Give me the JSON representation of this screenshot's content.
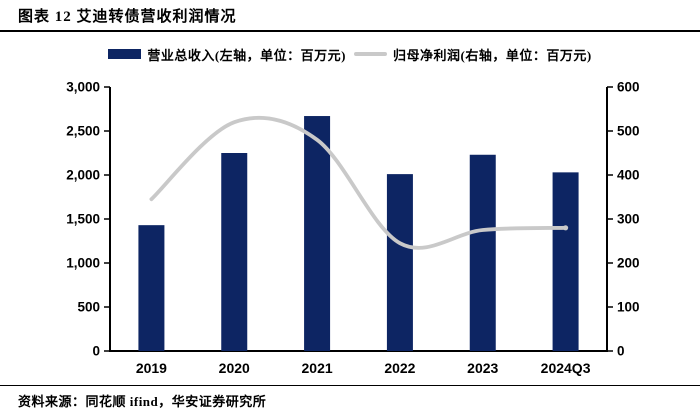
{
  "header": {
    "title": "图表 12  艾迪转债营收利润情况"
  },
  "legend": [
    {
      "label": "营业总收入(左轴，单位：百万元)",
      "swatch": "bar-swatch"
    },
    {
      "label": "归母净利润(右轴，单位：百万元)",
      "swatch": "line-swatch"
    }
  ],
  "chart_data": {
    "type": "bar",
    "subtype": "bar-and-smooth-line-dual-axis",
    "categories": [
      "2019",
      "2020",
      "2021",
      "2022",
      "2023",
      "2024Q3"
    ],
    "series": [
      {
        "name": "营业总收入",
        "type": "bar",
        "axis": "left",
        "unit": "百万元",
        "color": "#0D2563",
        "values": [
          1430,
          2250,
          2670,
          2010,
          2230,
          2030
        ]
      },
      {
        "name": "归母净利润",
        "type": "line",
        "axis": "right",
        "unit": "百万元",
        "color": "#C9C9C9",
        "smooth": true,
        "values": [
          345,
          520,
          480,
          245,
          275,
          280
        ]
      }
    ],
    "left_axis": {
      "min": 0,
      "max": 3000,
      "step": 500,
      "tick_labels": [
        "0",
        "500",
        "1,000",
        "1,500",
        "2,000",
        "2,500",
        "3,000"
      ]
    },
    "right_axis": {
      "min": 0,
      "max": 600,
      "step": 100,
      "tick_labels": [
        "0",
        "100",
        "200",
        "300",
        "400",
        "500",
        "600"
      ]
    },
    "grid": false,
    "legend_position": "top",
    "axis_color": "#000000",
    "tick_label_color": "#000000"
  },
  "footer": {
    "source": "资料来源：同花顺 ifind，华安证券研究所"
  }
}
